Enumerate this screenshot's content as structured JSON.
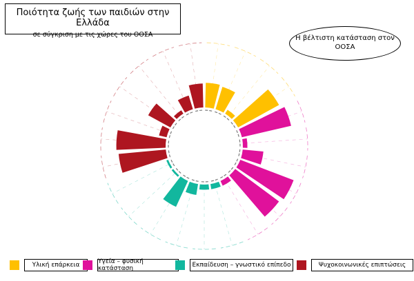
{
  "title": "Ποιότητα ζωής των παιδιών στην Ελλάδα",
  "subtitle": "σε σύγκριση με τις χώρες του ΟΟΣΑ",
  "best_label": "Η βέλτιστη κατάσταση στον ΟΟΣΑ",
  "colors": {
    "material": "#FFC000",
    "health": "#E0119B",
    "education": "#12B79E",
    "psychosocial": "#AE1620"
  },
  "legend": [
    {
      "key": "material",
      "label": "Υλική επάρκεια"
    },
    {
      "key": "health",
      "label": "Υγεία – φυσική κατάσταση"
    },
    {
      "key": "education",
      "label": "Εκπαίδευση – γνωστικό επίπεδο"
    },
    {
      "key": "psychosocial",
      "label": "Ψυχοκοινωνικές επιπτώσεις"
    }
  ],
  "chart_data": {
    "type": "bar",
    "layout": "radial",
    "max_value": 1.0,
    "series": [
      {
        "key": "material",
        "values": [
          0.38,
          0.36,
          0.07,
          0.72
        ]
      },
      {
        "key": "health",
        "values": [
          0.78,
          0.07,
          0.32,
          0.88,
          0.84,
          0.08
        ]
      },
      {
        "key": "education",
        "values": [
          0.08,
          0.08,
          0.17,
          0.44,
          0.03,
          0.03
        ]
      },
      {
        "key": "psychosocial",
        "values": [
          0.73,
          0.76,
          0.12,
          0.39,
          0.06,
          0.22,
          0.37
        ]
      }
    ]
  }
}
